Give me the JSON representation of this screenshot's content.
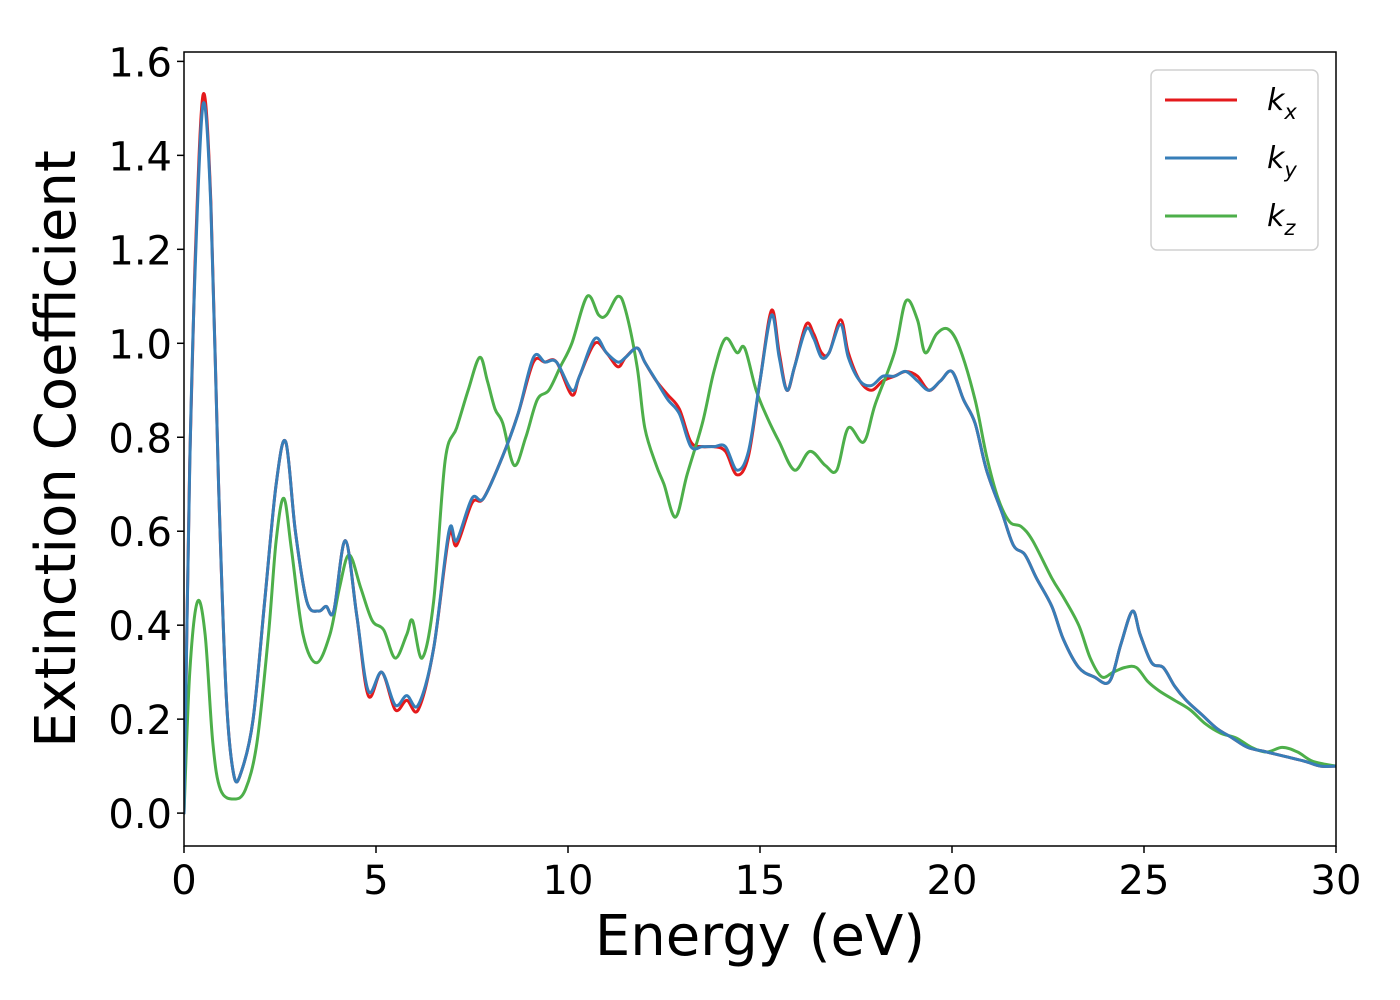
{
  "chart_data": {
    "type": "line",
    "title": "",
    "xlabel": "Energy (eV)",
    "ylabel": "Extinction Coefficient",
    "xlim": [
      0,
      30
    ],
    "ylim": [
      -0.07,
      1.62
    ],
    "xticks": [
      0,
      5,
      10,
      15,
      20,
      25,
      30
    ],
    "xtick_labels": [
      "0",
      "5",
      "10",
      "15",
      "20",
      "25",
      "30"
    ],
    "yticks": [
      0.0,
      0.2,
      0.4,
      0.6,
      0.8,
      1.0,
      1.2,
      1.4,
      1.6
    ],
    "ytick_labels": [
      "0.0",
      "0.2",
      "0.4",
      "0.6",
      "0.8",
      "1.0",
      "1.2",
      "1.4",
      "1.6"
    ],
    "grid": false,
    "legend_position": "top-right",
    "series": [
      {
        "name": "k_x",
        "legend_base": "k",
        "legend_sub": "x",
        "color": "#e41a1c",
        "points": [
          [
            0,
            0.0
          ],
          [
            0.15,
            0.75
          ],
          [
            0.3,
            1.2
          ],
          [
            0.5,
            1.53
          ],
          [
            0.7,
            1.3
          ],
          [
            0.9,
            0.7
          ],
          [
            1.1,
            0.25
          ],
          [
            1.3,
            0.08
          ],
          [
            1.5,
            0.09
          ],
          [
            1.8,
            0.2
          ],
          [
            2.1,
            0.45
          ],
          [
            2.4,
            0.7
          ],
          [
            2.65,
            0.79
          ],
          [
            2.9,
            0.6
          ],
          [
            3.2,
            0.45
          ],
          [
            3.5,
            0.43
          ],
          [
            3.7,
            0.44
          ],
          [
            3.9,
            0.43
          ],
          [
            4.2,
            0.58
          ],
          [
            4.5,
            0.42
          ],
          [
            4.8,
            0.25
          ],
          [
            5.15,
            0.3
          ],
          [
            5.5,
            0.22
          ],
          [
            5.8,
            0.24
          ],
          [
            6.1,
            0.22
          ],
          [
            6.5,
            0.35
          ],
          [
            6.9,
            0.59
          ],
          [
            7.1,
            0.57
          ],
          [
            7.5,
            0.66
          ],
          [
            7.8,
            0.67
          ],
          [
            8.3,
            0.76
          ],
          [
            8.7,
            0.85
          ],
          [
            9.1,
            0.96
          ],
          [
            9.4,
            0.96
          ],
          [
            9.7,
            0.96
          ],
          [
            10.1,
            0.89
          ],
          [
            10.3,
            0.93
          ],
          [
            10.7,
            1.0
          ],
          [
            11.0,
            0.98
          ],
          [
            11.3,
            0.95
          ],
          [
            11.5,
            0.97
          ],
          [
            11.8,
            0.99
          ],
          [
            12.0,
            0.96
          ],
          [
            12.3,
            0.92
          ],
          [
            12.6,
            0.89
          ],
          [
            12.9,
            0.86
          ],
          [
            13.2,
            0.79
          ],
          [
            13.5,
            0.78
          ],
          [
            13.8,
            0.78
          ],
          [
            14.1,
            0.77
          ],
          [
            14.4,
            0.72
          ],
          [
            14.7,
            0.76
          ],
          [
            15.0,
            0.92
          ],
          [
            15.3,
            1.07
          ],
          [
            15.5,
            0.98
          ],
          [
            15.7,
            0.9
          ],
          [
            15.9,
            0.95
          ],
          [
            16.2,
            1.04
          ],
          [
            16.4,
            1.02
          ],
          [
            16.6,
            0.98
          ],
          [
            16.8,
            0.98
          ],
          [
            17.1,
            1.05
          ],
          [
            17.3,
            0.98
          ],
          [
            17.6,
            0.92
          ],
          [
            17.9,
            0.9
          ],
          [
            18.2,
            0.92
          ],
          [
            18.5,
            0.93
          ],
          [
            18.8,
            0.94
          ],
          [
            19.1,
            0.93
          ],
          [
            19.4,
            0.9
          ],
          [
            19.7,
            0.92
          ],
          [
            20.0,
            0.94
          ],
          [
            20.3,
            0.88
          ],
          [
            20.6,
            0.83
          ],
          [
            20.9,
            0.73
          ],
          [
            21.3,
            0.64
          ],
          [
            21.6,
            0.57
          ],
          [
            21.9,
            0.55
          ],
          [
            22.2,
            0.5
          ],
          [
            22.6,
            0.44
          ],
          [
            22.9,
            0.37
          ],
          [
            23.3,
            0.31
          ],
          [
            23.7,
            0.29
          ],
          [
            24.1,
            0.28
          ],
          [
            24.4,
            0.36
          ],
          [
            24.7,
            0.43
          ],
          [
            24.9,
            0.38
          ],
          [
            25.2,
            0.32
          ],
          [
            25.5,
            0.31
          ],
          [
            25.8,
            0.27
          ],
          [
            26.1,
            0.24
          ],
          [
            26.5,
            0.21
          ],
          [
            26.9,
            0.18
          ],
          [
            27.3,
            0.16
          ],
          [
            27.7,
            0.14
          ],
          [
            28.2,
            0.13
          ],
          [
            28.7,
            0.12
          ],
          [
            29.2,
            0.11
          ],
          [
            29.6,
            0.1
          ],
          [
            30.0,
            0.1
          ]
        ]
      },
      {
        "name": "k_y",
        "legend_base": "k",
        "legend_sub": "y",
        "color": "#377eb8",
        "points": [
          [
            0,
            0.0
          ],
          [
            0.15,
            0.74
          ],
          [
            0.3,
            1.18
          ],
          [
            0.5,
            1.51
          ],
          [
            0.7,
            1.29
          ],
          [
            0.9,
            0.7
          ],
          [
            1.1,
            0.25
          ],
          [
            1.3,
            0.08
          ],
          [
            1.5,
            0.09
          ],
          [
            1.8,
            0.2
          ],
          [
            2.1,
            0.45
          ],
          [
            2.4,
            0.7
          ],
          [
            2.65,
            0.79
          ],
          [
            2.9,
            0.6
          ],
          [
            3.2,
            0.45
          ],
          [
            3.5,
            0.43
          ],
          [
            3.7,
            0.44
          ],
          [
            3.9,
            0.43
          ],
          [
            4.2,
            0.58
          ],
          [
            4.5,
            0.42
          ],
          [
            4.8,
            0.26
          ],
          [
            5.15,
            0.3
          ],
          [
            5.5,
            0.23
          ],
          [
            5.8,
            0.25
          ],
          [
            6.1,
            0.23
          ],
          [
            6.5,
            0.35
          ],
          [
            6.9,
            0.6
          ],
          [
            7.1,
            0.58
          ],
          [
            7.5,
            0.67
          ],
          [
            7.8,
            0.67
          ],
          [
            8.3,
            0.76
          ],
          [
            8.7,
            0.85
          ],
          [
            9.1,
            0.97
          ],
          [
            9.4,
            0.96
          ],
          [
            9.7,
            0.96
          ],
          [
            10.1,
            0.9
          ],
          [
            10.3,
            0.93
          ],
          [
            10.7,
            1.01
          ],
          [
            11.0,
            0.98
          ],
          [
            11.3,
            0.96
          ],
          [
            11.5,
            0.97
          ],
          [
            11.8,
            0.99
          ],
          [
            12.0,
            0.96
          ],
          [
            12.3,
            0.92
          ],
          [
            12.6,
            0.88
          ],
          [
            12.9,
            0.85
          ],
          [
            13.2,
            0.78
          ],
          [
            13.5,
            0.78
          ],
          [
            13.8,
            0.78
          ],
          [
            14.1,
            0.78
          ],
          [
            14.4,
            0.73
          ],
          [
            14.7,
            0.77
          ],
          [
            15.0,
            0.92
          ],
          [
            15.3,
            1.06
          ],
          [
            15.5,
            0.97
          ],
          [
            15.7,
            0.9
          ],
          [
            15.9,
            0.95
          ],
          [
            16.2,
            1.03
          ],
          [
            16.4,
            1.01
          ],
          [
            16.6,
            0.97
          ],
          [
            16.8,
            0.98
          ],
          [
            17.1,
            1.04
          ],
          [
            17.3,
            0.97
          ],
          [
            17.6,
            0.92
          ],
          [
            17.9,
            0.91
          ],
          [
            18.2,
            0.93
          ],
          [
            18.5,
            0.93
          ],
          [
            18.8,
            0.94
          ],
          [
            19.1,
            0.92
          ],
          [
            19.4,
            0.9
          ],
          [
            19.7,
            0.92
          ],
          [
            20.0,
            0.94
          ],
          [
            20.3,
            0.88
          ],
          [
            20.6,
            0.83
          ],
          [
            20.9,
            0.73
          ],
          [
            21.3,
            0.64
          ],
          [
            21.6,
            0.57
          ],
          [
            21.9,
            0.55
          ],
          [
            22.2,
            0.5
          ],
          [
            22.6,
            0.44
          ],
          [
            22.9,
            0.37
          ],
          [
            23.3,
            0.31
          ],
          [
            23.7,
            0.29
          ],
          [
            24.1,
            0.28
          ],
          [
            24.4,
            0.36
          ],
          [
            24.7,
            0.43
          ],
          [
            24.9,
            0.38
          ],
          [
            25.2,
            0.32
          ],
          [
            25.5,
            0.31
          ],
          [
            25.8,
            0.27
          ],
          [
            26.1,
            0.24
          ],
          [
            26.5,
            0.21
          ],
          [
            26.9,
            0.18
          ],
          [
            27.3,
            0.16
          ],
          [
            27.7,
            0.14
          ],
          [
            28.2,
            0.13
          ],
          [
            28.7,
            0.12
          ],
          [
            29.2,
            0.11
          ],
          [
            29.6,
            0.1
          ],
          [
            30.0,
            0.1
          ]
        ]
      },
      {
        "name": "k_z",
        "legend_base": "k",
        "legend_sub": "z",
        "color": "#4daf4a",
        "points": [
          [
            0,
            0.0
          ],
          [
            0.15,
            0.3
          ],
          [
            0.35,
            0.45
          ],
          [
            0.55,
            0.38
          ],
          [
            0.75,
            0.15
          ],
          [
            0.95,
            0.05
          ],
          [
            1.3,
            0.03
          ],
          [
            1.6,
            0.05
          ],
          [
            1.9,
            0.15
          ],
          [
            2.2,
            0.38
          ],
          [
            2.4,
            0.58
          ],
          [
            2.6,
            0.67
          ],
          [
            2.8,
            0.56
          ],
          [
            3.1,
            0.38
          ],
          [
            3.45,
            0.32
          ],
          [
            3.8,
            0.38
          ],
          [
            4.05,
            0.48
          ],
          [
            4.3,
            0.55
          ],
          [
            4.6,
            0.48
          ],
          [
            4.9,
            0.41
          ],
          [
            5.2,
            0.39
          ],
          [
            5.5,
            0.33
          ],
          [
            5.8,
            0.38
          ],
          [
            5.95,
            0.41
          ],
          [
            6.2,
            0.33
          ],
          [
            6.5,
            0.45
          ],
          [
            6.8,
            0.75
          ],
          [
            7.1,
            0.82
          ],
          [
            7.4,
            0.9
          ],
          [
            7.7,
            0.97
          ],
          [
            7.9,
            0.92
          ],
          [
            8.1,
            0.86
          ],
          [
            8.3,
            0.83
          ],
          [
            8.6,
            0.74
          ],
          [
            8.9,
            0.8
          ],
          [
            9.2,
            0.88
          ],
          [
            9.5,
            0.9
          ],
          [
            9.8,
            0.95
          ],
          [
            10.1,
            1.0
          ],
          [
            10.5,
            1.1
          ],
          [
            10.8,
            1.06
          ],
          [
            11.0,
            1.06
          ],
          [
            11.3,
            1.1
          ],
          [
            11.5,
            1.07
          ],
          [
            11.8,
            0.95
          ],
          [
            12.0,
            0.82
          ],
          [
            12.3,
            0.74
          ],
          [
            12.5,
            0.7
          ],
          [
            12.8,
            0.63
          ],
          [
            13.1,
            0.72
          ],
          [
            13.5,
            0.83
          ],
          [
            13.8,
            0.94
          ],
          [
            14.1,
            1.01
          ],
          [
            14.4,
            0.98
          ],
          [
            14.6,
            0.99
          ],
          [
            14.9,
            0.9
          ],
          [
            15.2,
            0.84
          ],
          [
            15.5,
            0.79
          ],
          [
            15.9,
            0.73
          ],
          [
            16.3,
            0.77
          ],
          [
            16.7,
            0.74
          ],
          [
            17.0,
            0.73
          ],
          [
            17.3,
            0.82
          ],
          [
            17.7,
            0.79
          ],
          [
            18.0,
            0.87
          ],
          [
            18.5,
            0.98
          ],
          [
            18.8,
            1.09
          ],
          [
            19.1,
            1.05
          ],
          [
            19.3,
            0.98
          ],
          [
            19.6,
            1.02
          ],
          [
            19.9,
            1.03
          ],
          [
            20.2,
            0.99
          ],
          [
            20.6,
            0.88
          ],
          [
            20.9,
            0.76
          ],
          [
            21.2,
            0.67
          ],
          [
            21.5,
            0.62
          ],
          [
            21.8,
            0.61
          ],
          [
            22.1,
            0.58
          ],
          [
            22.6,
            0.5
          ],
          [
            22.9,
            0.46
          ],
          [
            23.3,
            0.4
          ],
          [
            23.6,
            0.33
          ],
          [
            23.9,
            0.29
          ],
          [
            24.2,
            0.3
          ],
          [
            24.5,
            0.31
          ],
          [
            24.8,
            0.31
          ],
          [
            25.1,
            0.28
          ],
          [
            25.4,
            0.26
          ],
          [
            25.8,
            0.24
          ],
          [
            26.2,
            0.22
          ],
          [
            26.6,
            0.19
          ],
          [
            27.0,
            0.17
          ],
          [
            27.4,
            0.16
          ],
          [
            27.8,
            0.14
          ],
          [
            28.2,
            0.13
          ],
          [
            28.6,
            0.14
          ],
          [
            29.0,
            0.13
          ],
          [
            29.4,
            0.11
          ],
          [
            30.0,
            0.1
          ]
        ]
      }
    ]
  }
}
